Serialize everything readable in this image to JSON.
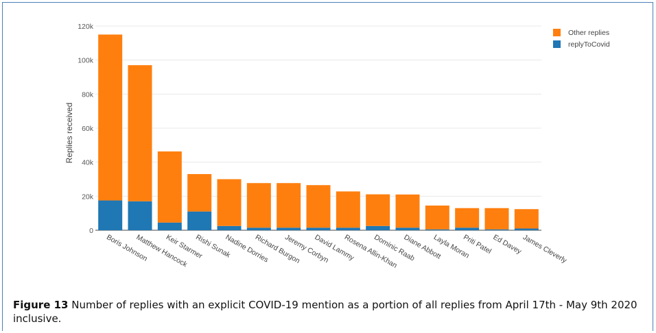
{
  "chart_data": {
    "type": "bar",
    "stacked": true,
    "categories": [
      "Boris Johnson",
      "Matthew Hancock",
      "Keir Starmer",
      "Rishi Sunak",
      "Nadine Dorries",
      "Richard Burgon",
      "Jeremy Corbyn",
      "David Lammy",
      "Rosena Allin-Khan",
      "Dominic Raab",
      "Diane Abbott",
      "Layla Moran",
      "Priti Patel",
      "Ed Davey",
      "James Cleverly"
    ],
    "series": [
      {
        "name": "replyToCovid",
        "color": "#1f77b4",
        "values": [
          17500,
          17000,
          4500,
          11000,
          2500,
          1500,
          1500,
          1500,
          1500,
          2500,
          1500,
          500,
          1500,
          500,
          1000
        ]
      },
      {
        "name": "Other replies",
        "color": "#ff7f0e",
        "values": [
          97500,
          80000,
          41800,
          22000,
          27500,
          26200,
          26200,
          25000,
          21300,
          18600,
          19500,
          14000,
          11500,
          12500,
          11400
        ]
      }
    ],
    "ylabel": "Replies received",
    "ylim": [
      0,
      120000
    ],
    "yticks": [
      "0",
      "20k",
      "40k",
      "60k",
      "80k",
      "100k",
      "120k"
    ],
    "ytick_values": [
      0,
      20000,
      40000,
      60000,
      80000,
      100000,
      120000
    ],
    "grid": true,
    "legend": "top-right"
  },
  "caption": {
    "label": "Figure 13",
    "text": "Number of replies with an explicit COVID-19 mention as a portion of all replies from April 17th - May 9th 2020 inclusive."
  }
}
